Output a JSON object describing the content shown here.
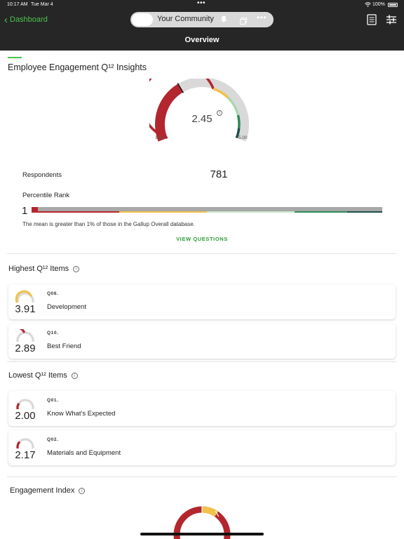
{
  "status_bar": {
    "time": "10:17 AM",
    "date": "Tue Mar 4",
    "battery": "100%"
  },
  "header": {
    "back_label": "Dashboard",
    "community_label": "Your Community",
    "page_title": "Overview",
    "icons": [
      "chevron-left-icon",
      "bell-icon",
      "cards-icon",
      "more-icon",
      "document-icon",
      "filter-sliders-icon"
    ]
  },
  "insights": {
    "title": "Employee Engagement Q¹² Insights",
    "gauge": {
      "value": "2.45",
      "numeric_value": 2.45,
      "min": "1.00",
      "max": "5.00"
    },
    "respondents_label": "Respondents",
    "respondents_value": "781",
    "percentile_label": "Percentile Rank",
    "percentile_value": "1",
    "percentile_numeric": 1,
    "percentile_note": "The mean is greater than 1% of those in the Gallup Overall database.",
    "view_questions": "VIEW QUESTIONS"
  },
  "highest": {
    "title": "Highest Q¹² Items",
    "items": [
      {
        "score": "3.91",
        "code": "Q06.",
        "name": "Development",
        "fraction": 0.73,
        "color": "#f0c24a"
      },
      {
        "score": "2.89",
        "code": "Q10.",
        "name": "Best Friend",
        "fraction": 0.47,
        "color": "#b3262e"
      }
    ]
  },
  "lowest": {
    "title": "Lowest Q¹² Items",
    "items": [
      {
        "score": "2.00",
        "code": "Q01.",
        "name": "Know What's Expected",
        "fraction": 0.25,
        "color": "#b3262e"
      },
      {
        "score": "2.17",
        "code": "Q02.",
        "name": "Materials and Equipment",
        "fraction": 0.29,
        "color": "#b3262e"
      }
    ]
  },
  "engagement_index": {
    "title": "Engagement Index"
  },
  "colors": {
    "accent_green": "#4cc24c",
    "link_green": "#2f9a3a",
    "header_bg": "#262626",
    "red": "#b3262e",
    "yellow": "#f0c24a",
    "light_green": "#a8d8b0",
    "dark_green": "#2e8b57",
    "dark_teal": "#1f4f4a",
    "grey_track": "#d9d9d9"
  }
}
